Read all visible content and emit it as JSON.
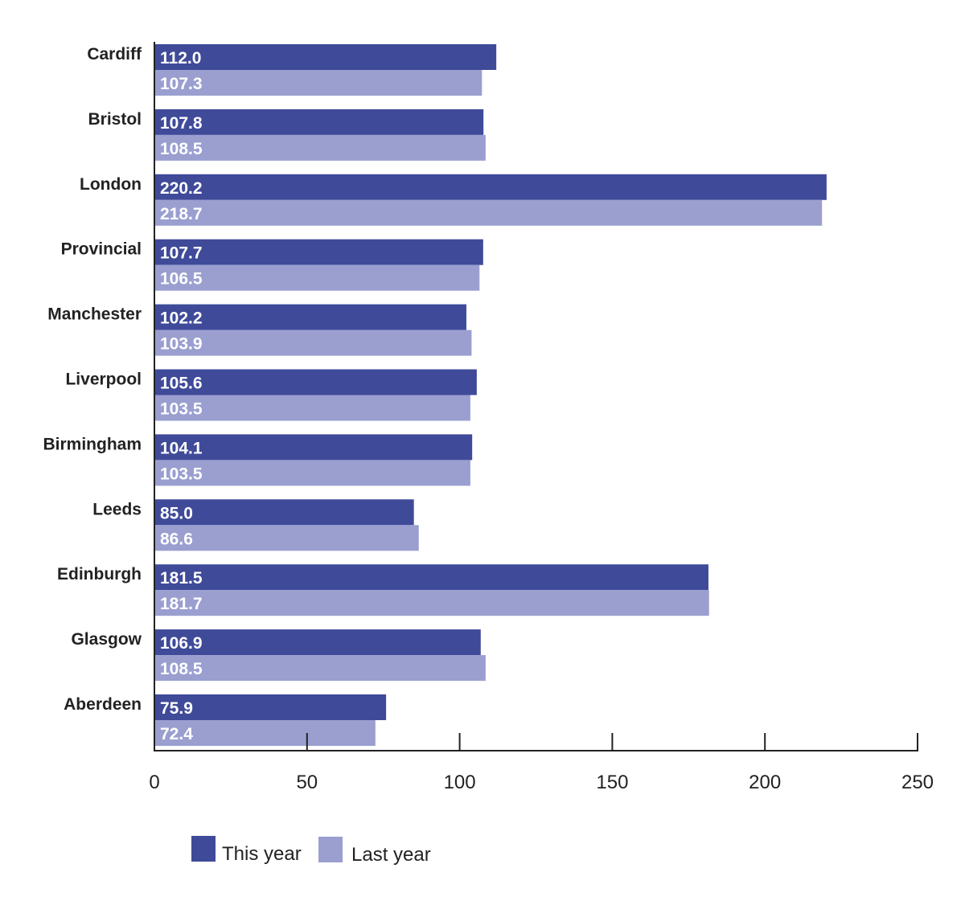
{
  "chart_data": {
    "type": "bar",
    "orientation": "horizontal",
    "categories": [
      "Cardiff",
      "Bristol",
      "London",
      "Provincial",
      "Manchester",
      "Liverpool",
      "Birmingham",
      "Leeds",
      "Edinburgh",
      "Glasgow",
      "Aberdeen"
    ],
    "series": [
      {
        "name": "This year",
        "color": "#3f4a99",
        "values": [
          112.0,
          107.8,
          220.2,
          107.7,
          102.2,
          105.6,
          104.1,
          85.0,
          181.5,
          106.9,
          75.9
        ],
        "labels": [
          "112.0",
          "107.8",
          "220.2",
          "107.7",
          "102.2",
          "105.6",
          "104.1",
          "85.0",
          "181.5",
          "106.9",
          "75.9"
        ]
      },
      {
        "name": "Last year",
        "color": "#9a9fd0",
        "values": [
          107.3,
          108.5,
          218.7,
          106.5,
          103.9,
          103.5,
          103.5,
          86.6,
          181.7,
          108.5,
          72.4
        ],
        "labels": [
          "107.3",
          "108.5",
          "218.7",
          "106.5",
          "103.9",
          "103.5",
          "103.5",
          "86.6",
          "181.7",
          "108.5",
          "72.4"
        ]
      }
    ],
    "xlim": [
      0,
      250
    ],
    "xticks": [
      0,
      50,
      100,
      150,
      200,
      250
    ],
    "xtick_labels": [
      "0",
      "50",
      "100",
      "150",
      "200",
      "250"
    ],
    "title": "",
    "xlabel": "",
    "ylabel": "",
    "grid": false,
    "legend_position": "bottom-left"
  }
}
